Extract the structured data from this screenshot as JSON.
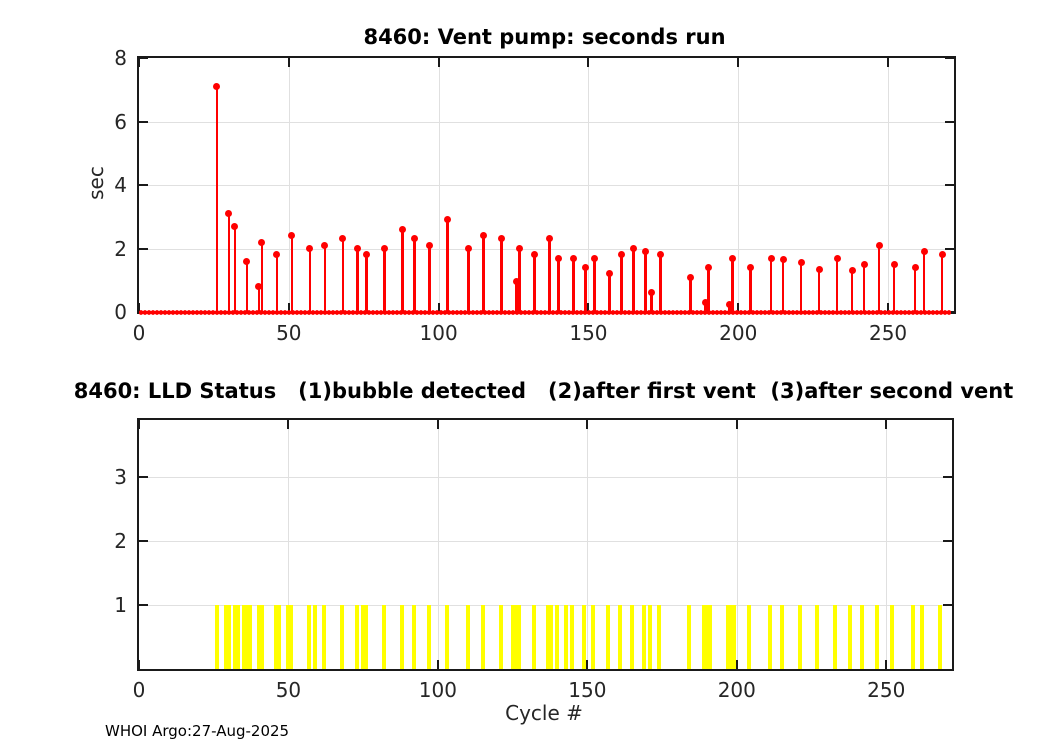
{
  "colors": {
    "stem_red": "#ff0000",
    "bar_yellow": "#ffff00",
    "grid_gray": "#e0e0e0",
    "axis_black": "#1a1a1a",
    "tick_text": "#262626"
  },
  "footer": {
    "credit": "WHOI Argo:27-Aug-2025"
  },
  "chart_data": [
    {
      "type": "stem",
      "title": "8460: Vent pump: seconds run",
      "ylabel": "sec",
      "xlabel": "",
      "xlim": [
        0,
        272
      ],
      "ylim": [
        0,
        8
      ],
      "xticks": [
        0,
        50,
        100,
        150,
        200,
        250
      ],
      "yticks": [
        0,
        2,
        4,
        6,
        8
      ],
      "grid": true,
      "series_name": "vent pump seconds run",
      "marker": "filled-circle",
      "zero_range": [
        0,
        271
      ],
      "points": [
        [
          26,
          7.1
        ],
        [
          30,
          3.1
        ],
        [
          32,
          2.7
        ],
        [
          36,
          1.6
        ],
        [
          40,
          0.8
        ],
        [
          41,
          2.2
        ],
        [
          46,
          1.8
        ],
        [
          51,
          2.4
        ],
        [
          57,
          2.0
        ],
        [
          62,
          2.1
        ],
        [
          68,
          2.3
        ],
        [
          73,
          2.0
        ],
        [
          76,
          1.8
        ],
        [
          82,
          2.0
        ],
        [
          88,
          2.6
        ],
        [
          92,
          2.3
        ],
        [
          97,
          2.1
        ],
        [
          103,
          2.9
        ],
        [
          110,
          2.0
        ],
        [
          115,
          2.4
        ],
        [
          121,
          2.3
        ],
        [
          126,
          0.95
        ],
        [
          127,
          2.0
        ],
        [
          132,
          1.8
        ],
        [
          137,
          2.3
        ],
        [
          140,
          1.7
        ],
        [
          145,
          1.7
        ],
        [
          149,
          1.4
        ],
        [
          152,
          1.7
        ],
        [
          157,
          1.2
        ],
        [
          161,
          1.8
        ],
        [
          165,
          2.0
        ],
        [
          169,
          1.9
        ],
        [
          171,
          0.6
        ],
        [
          174,
          1.8
        ],
        [
          184,
          1.1
        ],
        [
          189,
          0.3
        ],
        [
          190,
          1.4
        ],
        [
          197,
          0.25
        ],
        [
          198,
          1.7
        ],
        [
          204,
          1.4
        ],
        [
          211,
          1.7
        ],
        [
          215,
          1.65
        ],
        [
          221,
          1.55
        ],
        [
          227,
          1.35
        ],
        [
          233,
          1.7
        ],
        [
          238,
          1.3
        ],
        [
          242,
          1.5
        ],
        [
          247,
          2.1
        ],
        [
          252,
          1.5
        ],
        [
          259,
          1.4
        ],
        [
          262,
          1.9
        ],
        [
          268,
          1.8
        ]
      ]
    },
    {
      "type": "bar",
      "title": "8460: LLD Status   (1)bubble detected   (2)after first vent  (3)after second vent",
      "ylabel": "",
      "xlabel": "Cycle #",
      "xlim": [
        0,
        272
      ],
      "ylim": [
        0,
        3.9
      ],
      "xticks": [
        0,
        50,
        100,
        150,
        200,
        250
      ],
      "yticks": [
        1,
        2,
        3
      ],
      "grid": true,
      "series_name": "LLD status",
      "bar_value": 1,
      "cycles_at_1": [
        26,
        29,
        30,
        32,
        33,
        35,
        36,
        37,
        40,
        41,
        46,
        47,
        50,
        51,
        57,
        59,
        62,
        68,
        73,
        75,
        76,
        82,
        88,
        92,
        97,
        103,
        110,
        115,
        121,
        125,
        126,
        127,
        132,
        137,
        138,
        140,
        143,
        145,
        149,
        152,
        157,
        161,
        165,
        169,
        171,
        174,
        184,
        189,
        190,
        191,
        197,
        198,
        199,
        204,
        211,
        215,
        221,
        227,
        233,
        238,
        242,
        247,
        252,
        259,
        262,
        268
      ]
    }
  ]
}
